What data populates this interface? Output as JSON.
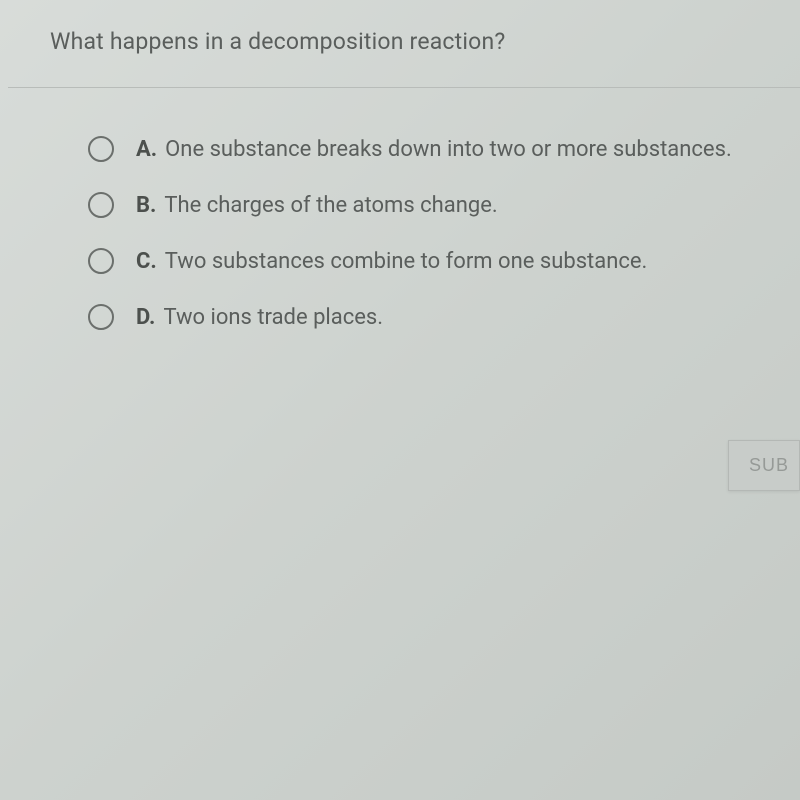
{
  "question": {
    "text": "What happens in a decomposition reaction?"
  },
  "options": [
    {
      "letter": "A.",
      "text": "One substance breaks down into two or more substances."
    },
    {
      "letter": "B.",
      "text": "The charges of the atoms change."
    },
    {
      "letter": "C.",
      "text": "Two substances combine to form one substance."
    },
    {
      "letter": "D.",
      "text": "Two ions trade places."
    }
  ],
  "submit": {
    "label": "SUB"
  },
  "colors": {
    "background_start": "#d8dcd9",
    "background_end": "#c5cac6",
    "text_primary": "#5a5e5c",
    "text_bold": "#4c504d",
    "radio_border": "#6b6f6c",
    "divider": "#b8bcb9",
    "button_bg": "#c8ccc9",
    "button_text": "#969a97"
  },
  "typography": {
    "question_fontsize": 23,
    "option_fontsize": 22,
    "button_fontsize": 18
  }
}
